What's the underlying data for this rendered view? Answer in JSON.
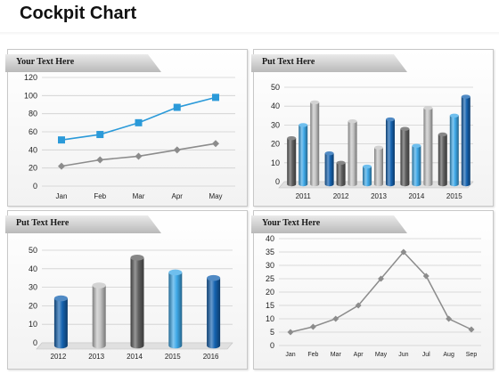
{
  "page": {
    "title": "Cockpit Chart"
  },
  "colors": {
    "blue_light": "#3fa9e8",
    "blue_dark": "#1563b0",
    "gray_dark": "#5f5f5f",
    "gray_light": "#c4c4c4",
    "line_blue": "#2b9ad9",
    "line_gray": "#8c8c8c"
  },
  "panels": [
    {
      "label": "Your Text Here"
    },
    {
      "label": "Put Text Here"
    },
    {
      "label": "Put Text Here"
    },
    {
      "label": "Your Text Here"
    }
  ],
  "chart_data": [
    {
      "type": "line",
      "categories": [
        "Jan",
        "Feb",
        "Mar",
        "Apr",
        "May"
      ],
      "series": [
        {
          "values": [
            51,
            57,
            70,
            87,
            98
          ],
          "color": "#2b9ad9",
          "marker": "square"
        },
        {
          "values": [
            22,
            29,
            33,
            40,
            47
          ],
          "color": "#8c8c8c",
          "marker": "diamond"
        }
      ],
      "yticks": [
        "0",
        "20",
        "40",
        "60",
        "80",
        "100",
        "120"
      ],
      "ylim": [
        0,
        120
      ],
      "grid": true
    },
    {
      "type": "bar",
      "categories": [
        "2011",
        "2012",
        "2013",
        "2014",
        "2015"
      ],
      "series": [
        {
          "values": [
            23,
            15,
            8,
            28,
            25
          ],
          "color_pattern": "alternating"
        },
        {
          "values": [
            30,
            10,
            18,
            19,
            35
          ]
        },
        {
          "values": [
            42,
            32,
            33,
            39,
            45
          ]
        }
      ],
      "bar_colors": [
        [
          "#5f5f5f",
          "#3fa9e8",
          "#c4c4c4"
        ],
        [
          "#1563b0",
          "#5f5f5f",
          "#c4c4c4"
        ],
        [
          "#3fa9e8",
          "#c4c4c4",
          "#1563b0"
        ],
        [
          "#5f5f5f",
          "#3fa9e8",
          "#c4c4c4"
        ],
        [
          "#5f5f5f",
          "#3fa9e8",
          "#1563b0"
        ]
      ],
      "yticks": [
        "0",
        "10",
        "20",
        "30",
        "40",
        "50"
      ],
      "ylim": [
        0,
        50
      ],
      "grid": true
    },
    {
      "type": "bar",
      "categories": [
        "2012",
        "2013",
        "2014",
        "2015",
        "2016"
      ],
      "values": [
        24,
        31,
        46,
        38,
        35
      ],
      "bar_colors": [
        "#1563b0",
        "#c4c4c4",
        "#5f5f5f",
        "#3fa9e8",
        "#1563b0"
      ],
      "yticks": [
        "0",
        "10",
        "20",
        "30",
        "40",
        "50"
      ],
      "ylim": [
        0,
        50
      ],
      "grid": true
    },
    {
      "type": "line",
      "categories": [
        "Jan",
        "Feb",
        "Mar",
        "Apr",
        "May",
        "Jun",
        "Jul",
        "Aug",
        "Sep"
      ],
      "values": [
        5,
        7,
        10,
        15,
        25,
        35,
        26,
        10,
        6
      ],
      "color": "#8c8c8c",
      "marker": "diamond",
      "yticks": [
        "0",
        "5",
        "10",
        "15",
        "20",
        "25",
        "30",
        "35",
        "40"
      ],
      "ylim": [
        0,
        40
      ],
      "grid": true
    }
  ]
}
